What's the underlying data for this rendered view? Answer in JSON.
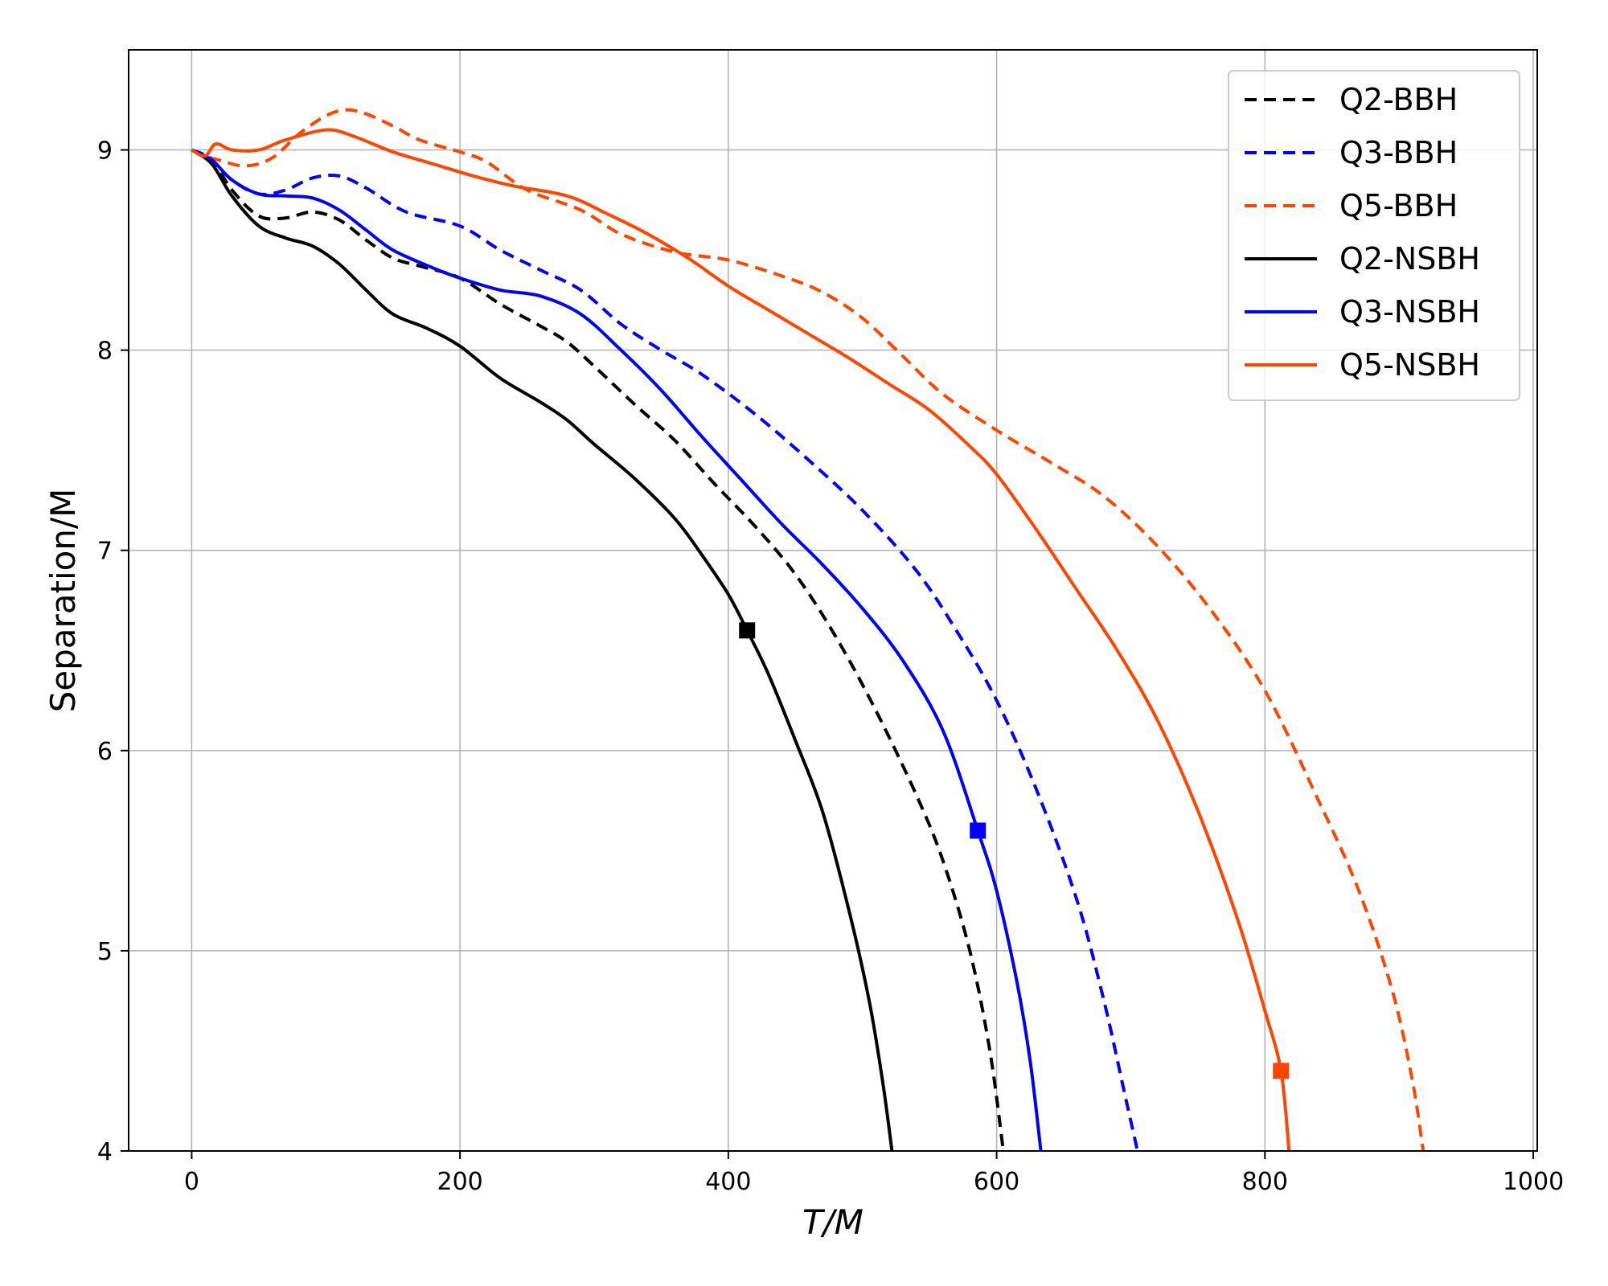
{
  "chart_data": {
    "type": "line",
    "xlabel": "T/M",
    "ylabel": "Separation/M",
    "xlim": [
      -47,
      1003
    ],
    "ylim": [
      4,
      9.5
    ],
    "xticks": [
      0,
      200,
      400,
      600,
      800,
      1000
    ],
    "yticks": [
      4,
      5,
      6,
      7,
      8,
      9
    ],
    "grid": true,
    "legend_position": "top-right",
    "series": [
      {
        "name": "Q2-BBH",
        "color": "#000000",
        "style": "dashed",
        "points": [
          [
            0,
            9.0
          ],
          [
            15,
            8.95
          ],
          [
            30,
            8.8
          ],
          [
            50,
            8.67
          ],
          [
            70,
            8.66
          ],
          [
            90,
            8.69
          ],
          [
            110,
            8.65
          ],
          [
            130,
            8.55
          ],
          [
            150,
            8.46
          ],
          [
            170,
            8.42
          ],
          [
            200,
            8.36
          ],
          [
            230,
            8.23
          ],
          [
            260,
            8.12
          ],
          [
            280,
            8.04
          ],
          [
            300,
            7.92
          ],
          [
            330,
            7.73
          ],
          [
            360,
            7.55
          ],
          [
            390,
            7.33
          ],
          [
            420,
            7.12
          ],
          [
            450,
            6.88
          ],
          [
            480,
            6.57
          ],
          [
            510,
            6.2
          ],
          [
            540,
            5.78
          ],
          [
            560,
            5.45
          ],
          [
            580,
            5.0
          ],
          [
            595,
            4.5
          ],
          [
            605,
            4.0
          ]
        ]
      },
      {
        "name": "Q3-BBH",
        "color": "#0000ff",
        "style": "dashed",
        "points": [
          [
            0,
            9.0
          ],
          [
            15,
            8.95
          ],
          [
            30,
            8.85
          ],
          [
            50,
            8.78
          ],
          [
            70,
            8.8
          ],
          [
            90,
            8.86
          ],
          [
            110,
            8.87
          ],
          [
            130,
            8.81
          ],
          [
            160,
            8.69
          ],
          [
            200,
            8.62
          ],
          [
            230,
            8.5
          ],
          [
            260,
            8.4
          ],
          [
            290,
            8.3
          ],
          [
            320,
            8.13
          ],
          [
            350,
            8.0
          ],
          [
            380,
            7.88
          ],
          [
            420,
            7.68
          ],
          [
            460,
            7.45
          ],
          [
            500,
            7.2
          ],
          [
            540,
            6.9
          ],
          [
            570,
            6.6
          ],
          [
            600,
            6.25
          ],
          [
            630,
            5.8
          ],
          [
            660,
            5.25
          ],
          [
            680,
            4.75
          ],
          [
            695,
            4.3
          ],
          [
            705,
            4.0
          ]
        ]
      },
      {
        "name": "Q5-BBH",
        "color": "#ff4500",
        "style": "dashed",
        "points": [
          [
            0,
            9.0
          ],
          [
            10,
            8.97
          ],
          [
            20,
            8.95
          ],
          [
            40,
            8.92
          ],
          [
            60,
            8.96
          ],
          [
            80,
            9.08
          ],
          [
            100,
            9.17
          ],
          [
            115,
            9.2
          ],
          [
            130,
            9.18
          ],
          [
            150,
            9.12
          ],
          [
            170,
            9.05
          ],
          [
            200,
            8.99
          ],
          [
            220,
            8.94
          ],
          [
            250,
            8.8
          ],
          [
            290,
            8.7
          ],
          [
            320,
            8.58
          ],
          [
            360,
            8.49
          ],
          [
            400,
            8.45
          ],
          [
            440,
            8.37
          ],
          [
            470,
            8.29
          ],
          [
            500,
            8.16
          ],
          [
            530,
            7.97
          ],
          [
            560,
            7.78
          ],
          [
            600,
            7.6
          ],
          [
            640,
            7.44
          ],
          [
            680,
            7.27
          ],
          [
            720,
            7.02
          ],
          [
            760,
            6.7
          ],
          [
            800,
            6.3
          ],
          [
            840,
            5.75
          ],
          [
            870,
            5.3
          ],
          [
            895,
            4.8
          ],
          [
            910,
            4.35
          ],
          [
            918,
            4.0
          ]
        ]
      },
      {
        "name": "Q2-NSBH",
        "color": "#000000",
        "style": "solid",
        "points": [
          [
            0,
            9.0
          ],
          [
            15,
            8.93
          ],
          [
            30,
            8.77
          ],
          [
            50,
            8.62
          ],
          [
            70,
            8.56
          ],
          [
            90,
            8.52
          ],
          [
            110,
            8.43
          ],
          [
            130,
            8.3
          ],
          [
            150,
            8.18
          ],
          [
            175,
            8.11
          ],
          [
            200,
            8.02
          ],
          [
            230,
            7.86
          ],
          [
            260,
            7.74
          ],
          [
            280,
            7.65
          ],
          [
            300,
            7.53
          ],
          [
            330,
            7.36
          ],
          [
            360,
            7.16
          ],
          [
            380,
            6.98
          ],
          [
            400,
            6.78
          ],
          [
            414,
            6.6
          ],
          [
            430,
            6.38
          ],
          [
            450,
            6.05
          ],
          [
            470,
            5.7
          ],
          [
            490,
            5.2
          ],
          [
            505,
            4.75
          ],
          [
            515,
            4.35
          ],
          [
            522,
            4.0
          ]
        ]
      },
      {
        "name": "Q3-NSBH",
        "color": "#0000ff",
        "style": "solid",
        "points": [
          [
            0,
            9.0
          ],
          [
            15,
            8.95
          ],
          [
            30,
            8.85
          ],
          [
            50,
            8.78
          ],
          [
            70,
            8.77
          ],
          [
            90,
            8.76
          ],
          [
            110,
            8.7
          ],
          [
            130,
            8.6
          ],
          [
            150,
            8.5
          ],
          [
            180,
            8.41
          ],
          [
            200,
            8.36
          ],
          [
            230,
            8.3
          ],
          [
            260,
            8.27
          ],
          [
            290,
            8.18
          ],
          [
            320,
            8.0
          ],
          [
            350,
            7.8
          ],
          [
            380,
            7.57
          ],
          [
            410,
            7.35
          ],
          [
            440,
            7.13
          ],
          [
            470,
            6.93
          ],
          [
            500,
            6.71
          ],
          [
            530,
            6.45
          ],
          [
            560,
            6.1
          ],
          [
            586,
            5.6
          ],
          [
            600,
            5.3
          ],
          [
            615,
            4.85
          ],
          [
            625,
            4.45
          ],
          [
            633,
            4.0
          ]
        ]
      },
      {
        "name": "Q5-NSBH",
        "color": "#ff4500",
        "style": "solid",
        "points": [
          [
            0,
            9.0
          ],
          [
            10,
            8.97
          ],
          [
            18,
            9.03
          ],
          [
            30,
            9.0
          ],
          [
            50,
            9.0
          ],
          [
            70,
            9.05
          ],
          [
            100,
            9.1
          ],
          [
            120,
            9.07
          ],
          [
            150,
            8.99
          ],
          [
            180,
            8.93
          ],
          [
            210,
            8.87
          ],
          [
            240,
            8.82
          ],
          [
            280,
            8.77
          ],
          [
            310,
            8.68
          ],
          [
            340,
            8.58
          ],
          [
            370,
            8.46
          ],
          [
            400,
            8.32
          ],
          [
            430,
            8.2
          ],
          [
            460,
            8.08
          ],
          [
            490,
            7.96
          ],
          [
            520,
            7.83
          ],
          [
            550,
            7.7
          ],
          [
            580,
            7.52
          ],
          [
            600,
            7.38
          ],
          [
            630,
            7.1
          ],
          [
            660,
            6.8
          ],
          [
            690,
            6.5
          ],
          [
            720,
            6.15
          ],
          [
            750,
            5.7
          ],
          [
            780,
            5.15
          ],
          [
            800,
            4.7
          ],
          [
            812,
            4.4
          ],
          [
            818,
            4.0
          ]
        ]
      }
    ],
    "markers": [
      {
        "series": "Q2-NSBH",
        "x": 414,
        "y": 6.6,
        "color": "#000000",
        "shape": "square"
      },
      {
        "series": "Q3-NSBH",
        "x": 586,
        "y": 5.6,
        "color": "#0000ff",
        "shape": "square"
      },
      {
        "series": "Q5-NSBH",
        "x": 812,
        "y": 4.4,
        "color": "#ff4500",
        "shape": "square"
      }
    ]
  }
}
